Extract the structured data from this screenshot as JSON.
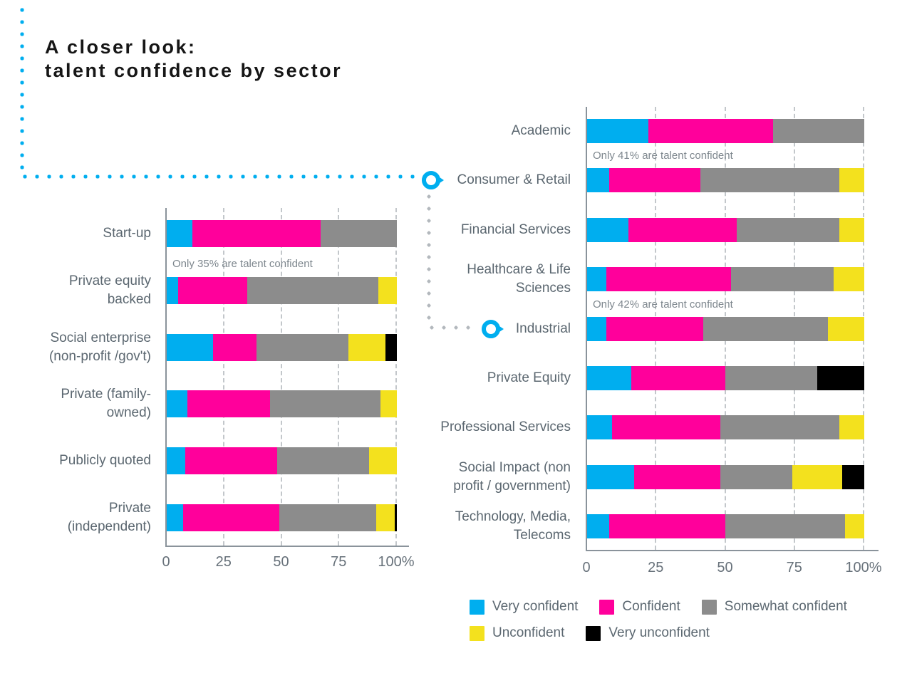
{
  "title": {
    "line1": "A closer look:",
    "line2": "talent confidence by sector"
  },
  "colors": {
    "very_confident": "#00aeef",
    "confident": "#ff009b",
    "somewhat_confident": "#8c8c8c",
    "unconfident": "#f3e11e",
    "very_unconfident": "#000000"
  },
  "legend": {
    "rows": [
      [
        {
          "key": "very_confident",
          "label": "Very confident"
        },
        {
          "key": "confident",
          "label": "Confident"
        },
        {
          "key": "somewhat_confident",
          "label": "Somewhat confident"
        }
      ],
      [
        {
          "key": "unconfident",
          "label": "Unconfident"
        },
        {
          "key": "very_unconfident",
          "label": "Very unconfident"
        }
      ]
    ]
  },
  "axis": {
    "tick_labels": [
      "0",
      "25",
      "50",
      "75",
      "100%"
    ],
    "tick_values": [
      0,
      25,
      50,
      75,
      100
    ]
  },
  "chart_data": [
    {
      "type": "bar",
      "orientation": "horizontal",
      "stacked": true,
      "unit": "percent",
      "xlim": [
        0,
        100
      ],
      "grid": true,
      "series_keys": [
        "very_confident",
        "confident",
        "somewhat_confident",
        "unconfident",
        "very_unconfident"
      ],
      "series_labels": [
        "Very confident",
        "Confident",
        "Somewhat confident",
        "Unconfident",
        "Very unconfident"
      ],
      "categories": [
        "Start-up",
        "Private equity backed",
        "Social enterprise (non-profit /gov't)",
        "Private (family-owned)",
        "Publicly quoted",
        "Private (independent)"
      ],
      "values": [
        [
          11,
          56,
          33,
          0,
          0
        ],
        [
          5,
          30,
          57,
          8,
          0
        ],
        [
          20,
          19,
          40,
          16,
          5
        ],
        [
          9,
          36,
          48,
          7,
          0
        ],
        [
          8,
          40,
          40,
          12,
          0
        ],
        [
          7,
          42,
          42,
          8,
          1
        ]
      ],
      "annotations": [
        {
          "text": "Only 35% are talent confident",
          "row_index": 1,
          "above_category": "Private equity backed"
        }
      ]
    },
    {
      "type": "bar",
      "orientation": "horizontal",
      "stacked": true,
      "unit": "percent",
      "xlim": [
        0,
        100
      ],
      "grid": true,
      "series_keys": [
        "very_confident",
        "confident",
        "somewhat_confident",
        "unconfident",
        "very_unconfident"
      ],
      "series_labels": [
        "Very confident",
        "Confident",
        "Somewhat confident",
        "Unconfident",
        "Very unconfident"
      ],
      "categories": [
        "Academic",
        "Consumer & Retail",
        "Financial Services",
        "Healthcare & Life Sciences",
        "Industrial",
        "Private Equity",
        "Professional Services",
        "Social Impact (non profit / government)",
        "Technology, Media, Telecoms"
      ],
      "values": [
        [
          22,
          45,
          33,
          0,
          0
        ],
        [
          8,
          33,
          50,
          9,
          0
        ],
        [
          15,
          39,
          37,
          9,
          0
        ],
        [
          7,
          45,
          37,
          11,
          0
        ],
        [
          7,
          35,
          45,
          13,
          0
        ],
        [
          16,
          34,
          33,
          0,
          17
        ],
        [
          9,
          39,
          43,
          9,
          0
        ],
        [
          17,
          31,
          26,
          18,
          8
        ],
        [
          8,
          42,
          43,
          7,
          0
        ]
      ],
      "annotations": [
        {
          "text": "Only 41% are talent confident",
          "row_index": 1,
          "above_category": "Consumer & Retail"
        },
        {
          "text": "Only 42% are talent confident",
          "row_index": 4,
          "above_category": "Industrial"
        }
      ]
    }
  ],
  "callouts": [
    {
      "target": "Consumer & Retail"
    },
    {
      "target": "Industrial"
    }
  ]
}
